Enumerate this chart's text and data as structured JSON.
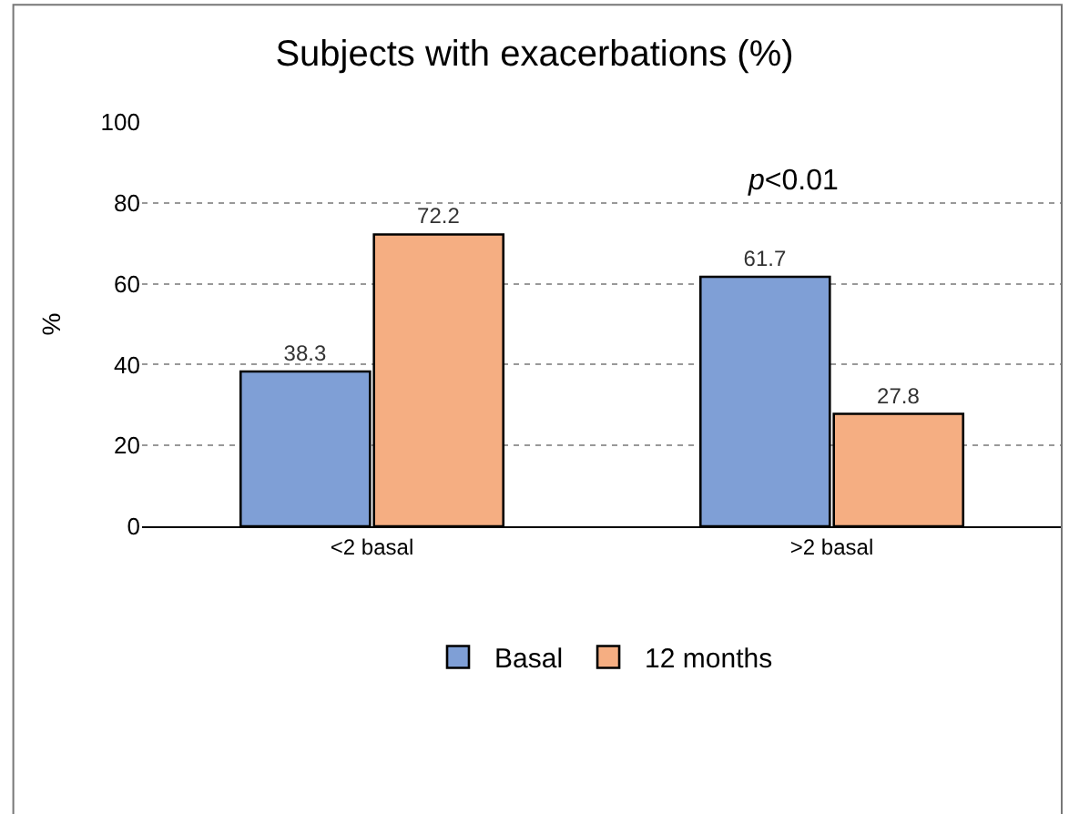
{
  "chart_data": {
    "type": "bar",
    "title": "Subjects with exacerbations (%)",
    "ylabel": "%",
    "categories": [
      "<2 basal",
      ">2 basal"
    ],
    "series": [
      {
        "name": "Basal",
        "color": "#7f9fd6",
        "values": [
          38.3,
          61.7
        ]
      },
      {
        "name": "12 months",
        "color": "#f5ae82",
        "values": [
          72.2,
          27.8
        ]
      }
    ],
    "ylim": [
      0,
      100
    ],
    "yticks": [
      0,
      20,
      40,
      60,
      80,
      100
    ],
    "grid": "y",
    "legend": "bottom",
    "data_labels": true,
    "annotations": [
      "p<0.01"
    ]
  }
}
